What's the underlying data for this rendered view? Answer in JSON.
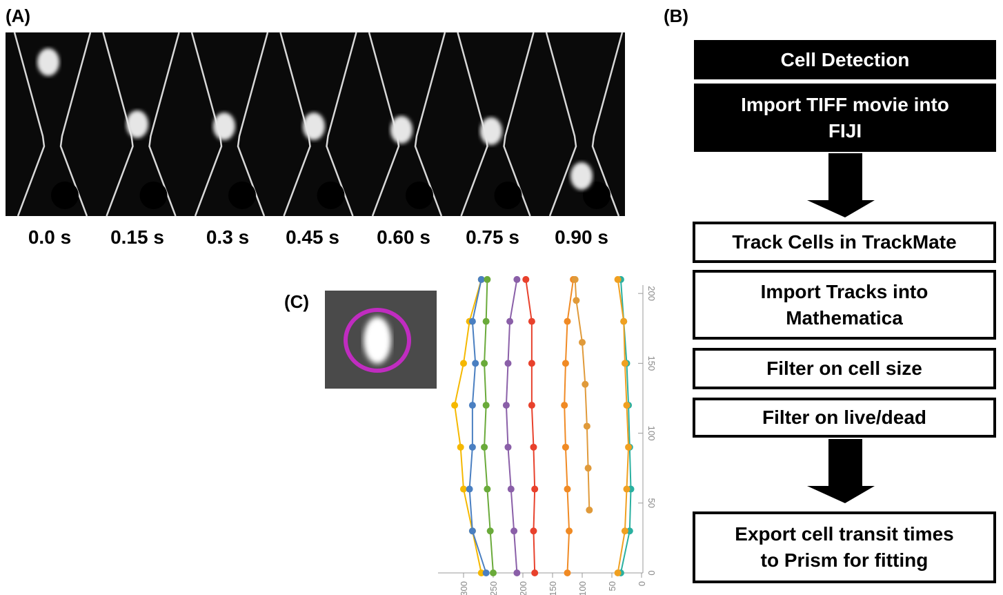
{
  "panels": {
    "a": {
      "label": "(A)",
      "time_labels": [
        "0.0 s",
        "0.15 s",
        "0.3 s",
        "0.45 s",
        "0.60 s",
        "0.75 s",
        "0.90 s"
      ]
    },
    "b": {
      "label": "(B)",
      "steps": [
        {
          "lines": [
            "Cell Detection"
          ]
        },
        {
          "lines": [
            "Import TIFF movie into",
            "FIJI"
          ]
        },
        {
          "lines": [
            "Track Cells in TrackMate"
          ]
        },
        {
          "lines": [
            "Import Tracks into",
            "Mathematica"
          ]
        },
        {
          "lines": [
            "Filter on cell size"
          ]
        },
        {
          "lines": [
            "Filter on live/dead"
          ]
        },
        {
          "lines": [
            "Export cell transit times",
            "to Prism for fitting"
          ]
        }
      ]
    },
    "c": {
      "label": "(C)"
    }
  },
  "chart_data": {
    "type": "line",
    "xlim": [
      343,
      0
    ],
    "ylim": [
      0,
      206
    ],
    "xticks": [
      300,
      250,
      200,
      150,
      100,
      50,
      0
    ],
    "yticks": [
      0,
      50,
      100,
      150,
      200
    ],
    "series": [
      {
        "color": "#f5b800",
        "x": [
          270,
          285,
          300,
          305,
          315,
          300,
          290,
          270
        ],
        "values": [
          0,
          30,
          60,
          90,
          120,
          150,
          180,
          210
        ]
      },
      {
        "color": "#4a7fc1",
        "x": [
          262,
          285,
          290,
          285,
          285,
          280,
          285,
          270
        ],
        "values": [
          0,
          30,
          60,
          90,
          120,
          150,
          180,
          210
        ]
      },
      {
        "color": "#6aaa3a",
        "x": [
          250,
          255,
          260,
          265,
          262,
          265,
          262,
          260
        ],
        "values": [
          0,
          30,
          60,
          90,
          120,
          150,
          180,
          210
        ]
      },
      {
        "color": "#e8412c",
        "x": [
          180,
          182,
          180,
          182,
          185,
          185,
          185,
          195
        ],
        "values": [
          0,
          30,
          60,
          90,
          120,
          150,
          180,
          210
        ]
      },
      {
        "color": "#8a5fa8",
        "x": [
          210,
          215,
          220,
          225,
          228,
          225,
          222,
          210
        ],
        "values": [
          0,
          30,
          60,
          90,
          120,
          150,
          180,
          210
        ]
      },
      {
        "color": "#f08a24",
        "x": [
          125,
          122,
          125,
          128,
          130,
          128,
          125,
          115
        ],
        "values": [
          0,
          30,
          60,
          90,
          120,
          150,
          180,
          210
        ]
      },
      {
        "color": "#e09a3a",
        "x": [
          88,
          90,
          92,
          95,
          100,
          110,
          112
        ],
        "values": [
          45,
          75,
          105,
          135,
          165,
          195,
          210
        ]
      },
      {
        "color": "#2ab0a0",
        "x": [
          35,
          20,
          18,
          20,
          22,
          25,
          30,
          35
        ],
        "values": [
          0,
          30,
          60,
          90,
          120,
          150,
          180,
          210
        ]
      },
      {
        "color": "#f0a020",
        "x": [
          40,
          28,
          25,
          22,
          25,
          28,
          30,
          40
        ],
        "values": [
          0,
          30,
          60,
          90,
          120,
          150,
          180,
          210
        ]
      }
    ]
  }
}
